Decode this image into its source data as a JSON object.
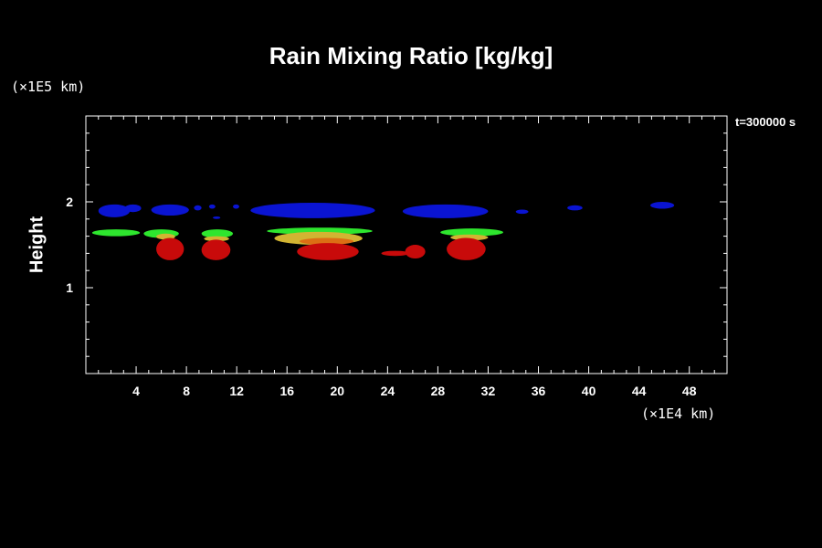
{
  "title": "Rain Mixing Ratio [kg/kg]",
  "time_label": "t=300000 s",
  "ylabel": "Height",
  "y_unit": "(×1E5 km)",
  "x_unit": "(×1E4 km)",
  "colors": {
    "background": "#000000",
    "axis": "#ffffff",
    "blue": "#0a14d2",
    "green": "#2ee62e",
    "yellow": "#d2b432",
    "orange": "#dc6e14",
    "red": "#c80a0a"
  },
  "chart_data": {
    "type": "heatmap",
    "title": "Rain Mixing Ratio [kg/kg]",
    "xlabel": "(×1E4 km)",
    "ylabel": "Height",
    "xlim": [
      0,
      51
    ],
    "ylim": [
      0,
      3
    ],
    "x_ticks": [
      4,
      8,
      12,
      16,
      20,
      24,
      28,
      32,
      36,
      40,
      44,
      48
    ],
    "y_ticks": [
      1,
      2
    ],
    "regions": [
      {
        "color": "blue",
        "x": [
          1.0,
          3.5
        ],
        "y": [
          1.82,
          1.97
        ]
      },
      {
        "color": "blue",
        "x": [
          3.1,
          4.4
        ],
        "y": [
          1.88,
          1.97
        ]
      },
      {
        "color": "blue",
        "x": [
          5.2,
          8.2
        ],
        "y": [
          1.84,
          1.97
        ]
      },
      {
        "color": "blue",
        "x": [
          8.6,
          9.2
        ],
        "y": [
          1.9,
          1.96
        ]
      },
      {
        "color": "blue",
        "x": [
          9.8,
          10.3
        ],
        "y": [
          1.92,
          1.97
        ]
      },
      {
        "color": "blue",
        "x": [
          10.1,
          10.7
        ],
        "y": [
          1.8,
          1.83
        ]
      },
      {
        "color": "blue",
        "x": [
          11.7,
          12.2
        ],
        "y": [
          1.92,
          1.97
        ]
      },
      {
        "color": "blue",
        "x": [
          13.1,
          23.0
        ],
        "y": [
          1.81,
          1.99
        ]
      },
      {
        "color": "blue",
        "x": [
          25.2,
          32.0
        ],
        "y": [
          1.81,
          1.97
        ]
      },
      {
        "color": "blue",
        "x": [
          34.2,
          35.2
        ],
        "y": [
          1.86,
          1.91
        ]
      },
      {
        "color": "blue",
        "x": [
          38.3,
          39.5
        ],
        "y": [
          1.9,
          1.96
        ]
      },
      {
        "color": "blue",
        "x": [
          44.9,
          46.8
        ],
        "y": [
          1.92,
          2.0
        ]
      },
      {
        "color": "green",
        "x": [
          0.5,
          4.3
        ],
        "y": [
          1.6,
          1.68
        ]
      },
      {
        "color": "green",
        "x": [
          4.6,
          7.4
        ],
        "y": [
          1.58,
          1.68
        ]
      },
      {
        "color": "yellow",
        "x": [
          5.6,
          7.1
        ],
        "y": [
          1.56,
          1.63
        ]
      },
      {
        "color": "red",
        "x": [
          5.6,
          7.8
        ],
        "y": [
          1.32,
          1.58
        ]
      },
      {
        "color": "green",
        "x": [
          9.2,
          11.7
        ],
        "y": [
          1.58,
          1.68
        ]
      },
      {
        "color": "yellow",
        "x": [
          9.4,
          11.4
        ],
        "y": [
          1.54,
          1.6
        ]
      },
      {
        "color": "red",
        "x": [
          9.2,
          11.5
        ],
        "y": [
          1.32,
          1.56
        ]
      },
      {
        "color": "green",
        "x": [
          14.4,
          22.8
        ],
        "y": [
          1.62,
          1.7
        ]
      },
      {
        "color": "yellow",
        "x": [
          15.0,
          22.0
        ],
        "y": [
          1.5,
          1.65
        ]
      },
      {
        "color": "orange",
        "x": [
          17.0,
          21.3
        ],
        "y": [
          1.5,
          1.58
        ]
      },
      {
        "color": "red",
        "x": [
          16.8,
          21.7
        ],
        "y": [
          1.32,
          1.52
        ]
      },
      {
        "color": "red",
        "x": [
          23.5,
          25.7
        ],
        "y": [
          1.37,
          1.43
        ]
      },
      {
        "color": "red",
        "x": [
          25.4,
          27.0
        ],
        "y": [
          1.34,
          1.5
        ]
      },
      {
        "color": "green",
        "x": [
          28.2,
          33.2
        ],
        "y": [
          1.6,
          1.69
        ]
      },
      {
        "color": "yellow",
        "x": [
          29.0,
          32.0
        ],
        "y": [
          1.55,
          1.62
        ]
      },
      {
        "color": "red",
        "x": [
          28.7,
          31.8
        ],
        "y": [
          1.32,
          1.58
        ]
      }
    ]
  }
}
